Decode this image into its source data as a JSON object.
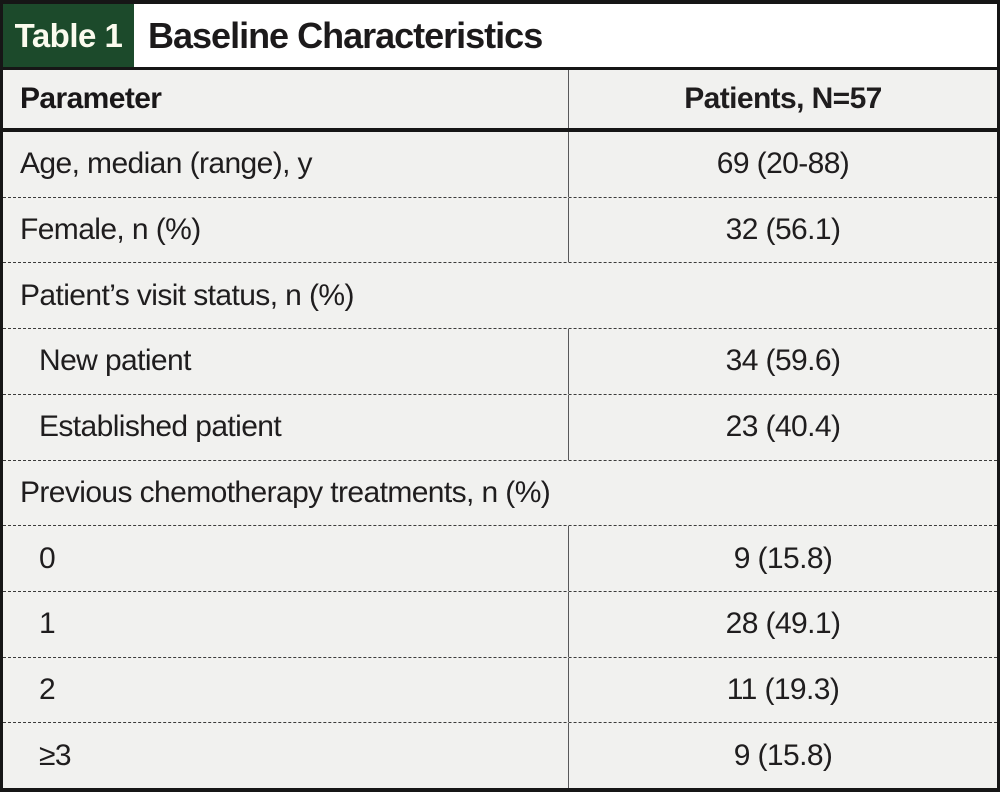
{
  "table_tag": "Table 1",
  "title": "Baseline Characteristics",
  "columns": [
    "Parameter",
    "Patients, N=57"
  ],
  "rows": [
    {
      "type": "data",
      "indent": false,
      "label": "Age, median (range), y",
      "value": "69 (20-88)"
    },
    {
      "type": "data",
      "indent": false,
      "label": "Female, n (%)",
      "value": "32 (56.1)"
    },
    {
      "type": "section",
      "indent": false,
      "label": "Patient’s visit status, n (%)",
      "value": null
    },
    {
      "type": "data",
      "indent": true,
      "label": "New patient",
      "value": "34 (59.6)"
    },
    {
      "type": "data",
      "indent": true,
      "label": "Established patient",
      "value": "23 (40.4)"
    },
    {
      "type": "section",
      "indent": false,
      "label": "Previous chemotherapy treatments, n (%)",
      "value": null
    },
    {
      "type": "data",
      "indent": true,
      "label": "0",
      "value": "9 (15.8)"
    },
    {
      "type": "data",
      "indent": true,
      "label": "1",
      "value": "28 (49.1)"
    },
    {
      "type": "data",
      "indent": true,
      "label": "2",
      "value": "11 (19.3)"
    },
    {
      "type": "data",
      "indent": true,
      "label": "≥3",
      "value": "9 (15.8)"
    }
  ],
  "colors": {
    "tag_green": "#1c4a2b",
    "row_background": "#f1f1ef",
    "border_black": "#161616",
    "dashed_separator": "#3b3b3b",
    "column_divider": "#58585a"
  }
}
